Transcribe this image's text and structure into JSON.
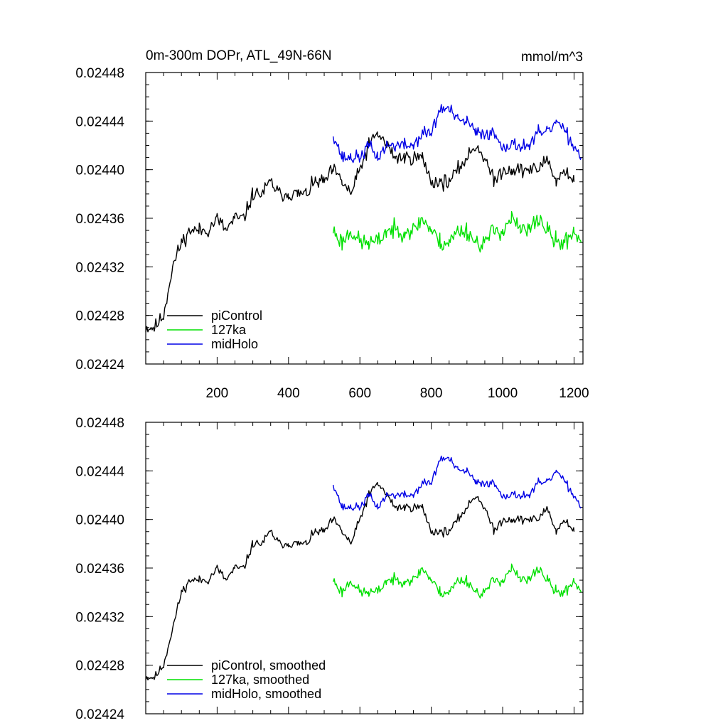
{
  "colors": {
    "piControl": "#000000",
    "127ka": "#00e000",
    "midHolo": "#0000e6"
  },
  "chart_data": [
    {
      "type": "line",
      "title": "0m-300m DOPr, ATL_49N-66N",
      "units": "mmol/m^3",
      "xlim": [
        0,
        1225
      ],
      "ylim": [
        0.02424,
        0.02448
      ],
      "xticks": [
        200,
        400,
        600,
        800,
        1000,
        1200
      ],
      "xtick_labels": [
        "200",
        "400",
        "600",
        "800",
        "1000",
        "1200"
      ],
      "yticks": [
        0.02424,
        0.02428,
        0.02432,
        0.02436,
        0.0244,
        0.02444,
        0.02448
      ],
      "ytick_labels": [
        "0.02424",
        "0.02428",
        "0.02432",
        "0.02436",
        "0.02440",
        "0.02444",
        "0.02448"
      ],
      "legend": [
        "piControl",
        "127ka",
        "midHolo"
      ],
      "legend_position": "bottom-left",
      "series": [
        {
          "name": "piControl",
          "color_key": "piControl",
          "noise": 6e-06,
          "seed": 11,
          "x": [
            0,
            25,
            50,
            75,
            100,
            125,
            150,
            175,
            200,
            225,
            250,
            275,
            300,
            325,
            350,
            375,
            400,
            425,
            450,
            475,
            500,
            525,
            550,
            575,
            600,
            625,
            650,
            675,
            700,
            725,
            750,
            775,
            800,
            825,
            850,
            875,
            900,
            925,
            950,
            975,
            1000,
            1025,
            1050,
            1075,
            1100,
            1125,
            1150,
            1175,
            1200
          ],
          "values": [
            0.02427,
            0.02427,
            0.02428,
            0.02432,
            0.02434,
            0.02435,
            0.02435,
            0.02435,
            0.02436,
            0.02435,
            0.02436,
            0.02436,
            0.02438,
            0.02438,
            0.02439,
            0.02438,
            0.02438,
            0.02438,
            0.02438,
            0.02439,
            0.02439,
            0.0244,
            0.02439,
            0.02438,
            0.0244,
            0.02442,
            0.02443,
            0.02442,
            0.02441,
            0.02441,
            0.02441,
            0.02441,
            0.02439,
            0.02439,
            0.02439,
            0.0244,
            0.02441,
            0.02442,
            0.02441,
            0.02439,
            0.0244,
            0.0244,
            0.0244,
            0.0244,
            0.0244,
            0.02441,
            0.02439,
            0.0244,
            0.02439
          ]
        },
        {
          "name": "127ka",
          "color_key": "127ka",
          "noise": 7.5e-06,
          "seed": 23,
          "x": [
            525,
            550,
            575,
            600,
            625,
            650,
            675,
            700,
            725,
            750,
            775,
            800,
            825,
            850,
            875,
            900,
            925,
            950,
            975,
            1000,
            1025,
            1050,
            1075,
            1100,
            1125,
            1150,
            1175,
            1200,
            1220
          ],
          "values": [
            0.02435,
            0.02434,
            0.02435,
            0.02434,
            0.02434,
            0.02434,
            0.02435,
            0.02435,
            0.02435,
            0.02435,
            0.02436,
            0.02435,
            0.02434,
            0.02434,
            0.02435,
            0.02435,
            0.02434,
            0.02434,
            0.02435,
            0.02435,
            0.02436,
            0.02435,
            0.02435,
            0.02436,
            0.02435,
            0.02434,
            0.02434,
            0.02435,
            0.02434
          ]
        },
        {
          "name": "midHolo",
          "color_key": "midHolo",
          "noise": 5.5e-06,
          "seed": 37,
          "x": [
            525,
            550,
            575,
            600,
            625,
            650,
            675,
            700,
            725,
            750,
            775,
            800,
            825,
            850,
            875,
            900,
            925,
            950,
            975,
            1000,
            1025,
            1050,
            1075,
            1100,
            1125,
            1150,
            1175,
            1200,
            1220
          ],
          "values": [
            0.02443,
            0.02441,
            0.02441,
            0.02441,
            0.02442,
            0.02441,
            0.02442,
            0.02442,
            0.02442,
            0.02442,
            0.02443,
            0.02443,
            0.02445,
            0.02445,
            0.02444,
            0.02444,
            0.02443,
            0.02443,
            0.02443,
            0.02442,
            0.02442,
            0.02442,
            0.02442,
            0.02443,
            0.02443,
            0.02444,
            0.02443,
            0.02442,
            0.02441
          ]
        }
      ]
    },
    {
      "type": "line",
      "title": "",
      "xlim": [
        0,
        1225
      ],
      "ylim": [
        0.02424,
        0.02448
      ],
      "yticks": [
        0.02424,
        0.02428,
        0.02432,
        0.02436,
        0.0244,
        0.02444,
        0.02448
      ],
      "ytick_labels": [
        "0.02424",
        "0.02428",
        "0.02432",
        "0.02436",
        "0.02440",
        "0.02444",
        "0.02448"
      ],
      "xticks": [
        200,
        400,
        600,
        800,
        1000,
        1200
      ],
      "legend": [
        "piControl, smoothed",
        "127ka, smoothed",
        "midHolo, smoothed"
      ],
      "legend_position": "bottom-left",
      "series": [
        {
          "name": "piControl, smoothed",
          "color_key": "piControl",
          "noise": 3.5e-06,
          "seed": 11,
          "x": [
            0,
            25,
            50,
            75,
            100,
            125,
            150,
            175,
            200,
            225,
            250,
            275,
            300,
            325,
            350,
            375,
            400,
            425,
            450,
            475,
            500,
            525,
            550,
            575,
            600,
            625,
            650,
            675,
            700,
            725,
            750,
            775,
            800,
            825,
            850,
            875,
            900,
            925,
            950,
            975,
            1000,
            1025,
            1050,
            1075,
            1100,
            1125,
            1150,
            1175,
            1200
          ],
          "values": [
            0.02427,
            0.02427,
            0.02428,
            0.02431,
            0.02434,
            0.02435,
            0.02435,
            0.02435,
            0.02436,
            0.02435,
            0.02436,
            0.02436,
            0.02438,
            0.02438,
            0.02439,
            0.02438,
            0.02438,
            0.02438,
            0.02438,
            0.02439,
            0.02439,
            0.0244,
            0.02439,
            0.02438,
            0.0244,
            0.02442,
            0.02443,
            0.02442,
            0.02441,
            0.02441,
            0.02441,
            0.02441,
            0.02439,
            0.02439,
            0.02439,
            0.0244,
            0.02441,
            0.02442,
            0.02441,
            0.02439,
            0.0244,
            0.0244,
            0.0244,
            0.0244,
            0.0244,
            0.02441,
            0.02439,
            0.0244,
            0.02439
          ]
        },
        {
          "name": "127ka, smoothed",
          "color_key": "127ka",
          "noise": 4.5e-06,
          "seed": 23,
          "x": [
            525,
            550,
            575,
            600,
            625,
            650,
            675,
            700,
            725,
            750,
            775,
            800,
            825,
            850,
            875,
            900,
            925,
            950,
            975,
            1000,
            1025,
            1050,
            1075,
            1100,
            1125,
            1150,
            1175,
            1200,
            1220
          ],
          "values": [
            0.02435,
            0.02434,
            0.02435,
            0.02434,
            0.02434,
            0.02434,
            0.02435,
            0.02435,
            0.02435,
            0.02435,
            0.02436,
            0.02435,
            0.02434,
            0.02434,
            0.02435,
            0.02435,
            0.02434,
            0.02434,
            0.02435,
            0.02435,
            0.02436,
            0.02435,
            0.02435,
            0.02436,
            0.02435,
            0.02434,
            0.02434,
            0.02435,
            0.02434
          ]
        },
        {
          "name": "midHolo, smoothed",
          "color_key": "midHolo",
          "noise": 3.3e-06,
          "seed": 37,
          "x": [
            525,
            550,
            575,
            600,
            625,
            650,
            675,
            700,
            725,
            750,
            775,
            800,
            825,
            850,
            875,
            900,
            925,
            950,
            975,
            1000,
            1025,
            1050,
            1075,
            1100,
            1125,
            1150,
            1175,
            1200,
            1220
          ],
          "values": [
            0.02443,
            0.02441,
            0.02441,
            0.02441,
            0.02442,
            0.02441,
            0.02442,
            0.02442,
            0.02442,
            0.02442,
            0.02443,
            0.02443,
            0.02445,
            0.02445,
            0.02444,
            0.02444,
            0.02443,
            0.02443,
            0.02443,
            0.02442,
            0.02442,
            0.02442,
            0.02442,
            0.02443,
            0.02443,
            0.02444,
            0.02443,
            0.02442,
            0.02441
          ]
        }
      ]
    }
  ]
}
